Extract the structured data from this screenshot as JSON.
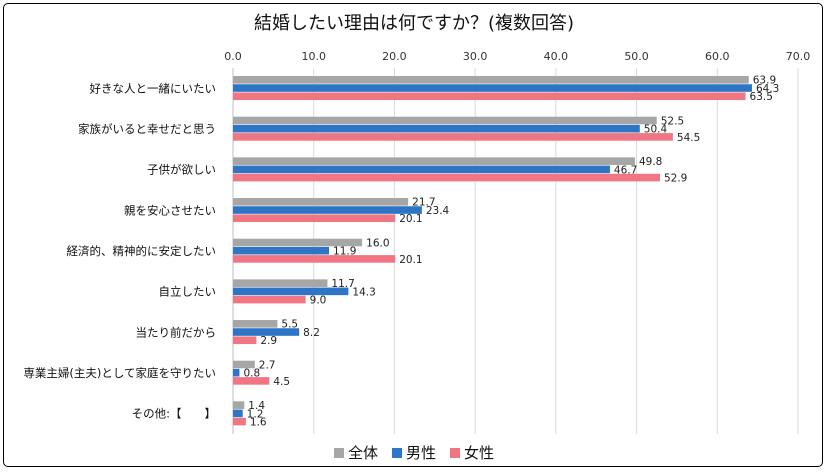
{
  "chart_data": {
    "type": "bar",
    "orientation": "horizontal",
    "title": "結婚したい理由は何ですか？(複数回答)",
    "xlim": [
      0,
      70
    ],
    "xticks": [
      "0.0",
      "10.0",
      "20.0",
      "30.0",
      "40.0",
      "50.0",
      "60.0",
      "70.0"
    ],
    "grid": true,
    "legend_position": "bottom",
    "categories": [
      "好きな人と一緒にいたい",
      "家族がいると幸せだと思う",
      "子供が欲しい",
      "親を安心させたい",
      "経済的、精神的に安定したい",
      "自立したい",
      "当たり前だから",
      "専業主婦(主夫)として家庭を守りたい",
      "その他:【　　】"
    ],
    "series": [
      {
        "name": "全体",
        "color": "#a6a6a6",
        "values": [
          63.9,
          52.5,
          49.8,
          21.7,
          16.0,
          11.7,
          5.5,
          2.7,
          1.4
        ]
      },
      {
        "name": "男性",
        "color": "#2e75c5",
        "values": [
          64.3,
          50.4,
          46.7,
          23.4,
          11.9,
          14.3,
          8.2,
          0.8,
          1.2
        ]
      },
      {
        "name": "女性",
        "color": "#f07684",
        "values": [
          63.5,
          54.5,
          52.9,
          20.1,
          20.1,
          9.0,
          2.9,
          4.5,
          1.6
        ]
      }
    ]
  }
}
